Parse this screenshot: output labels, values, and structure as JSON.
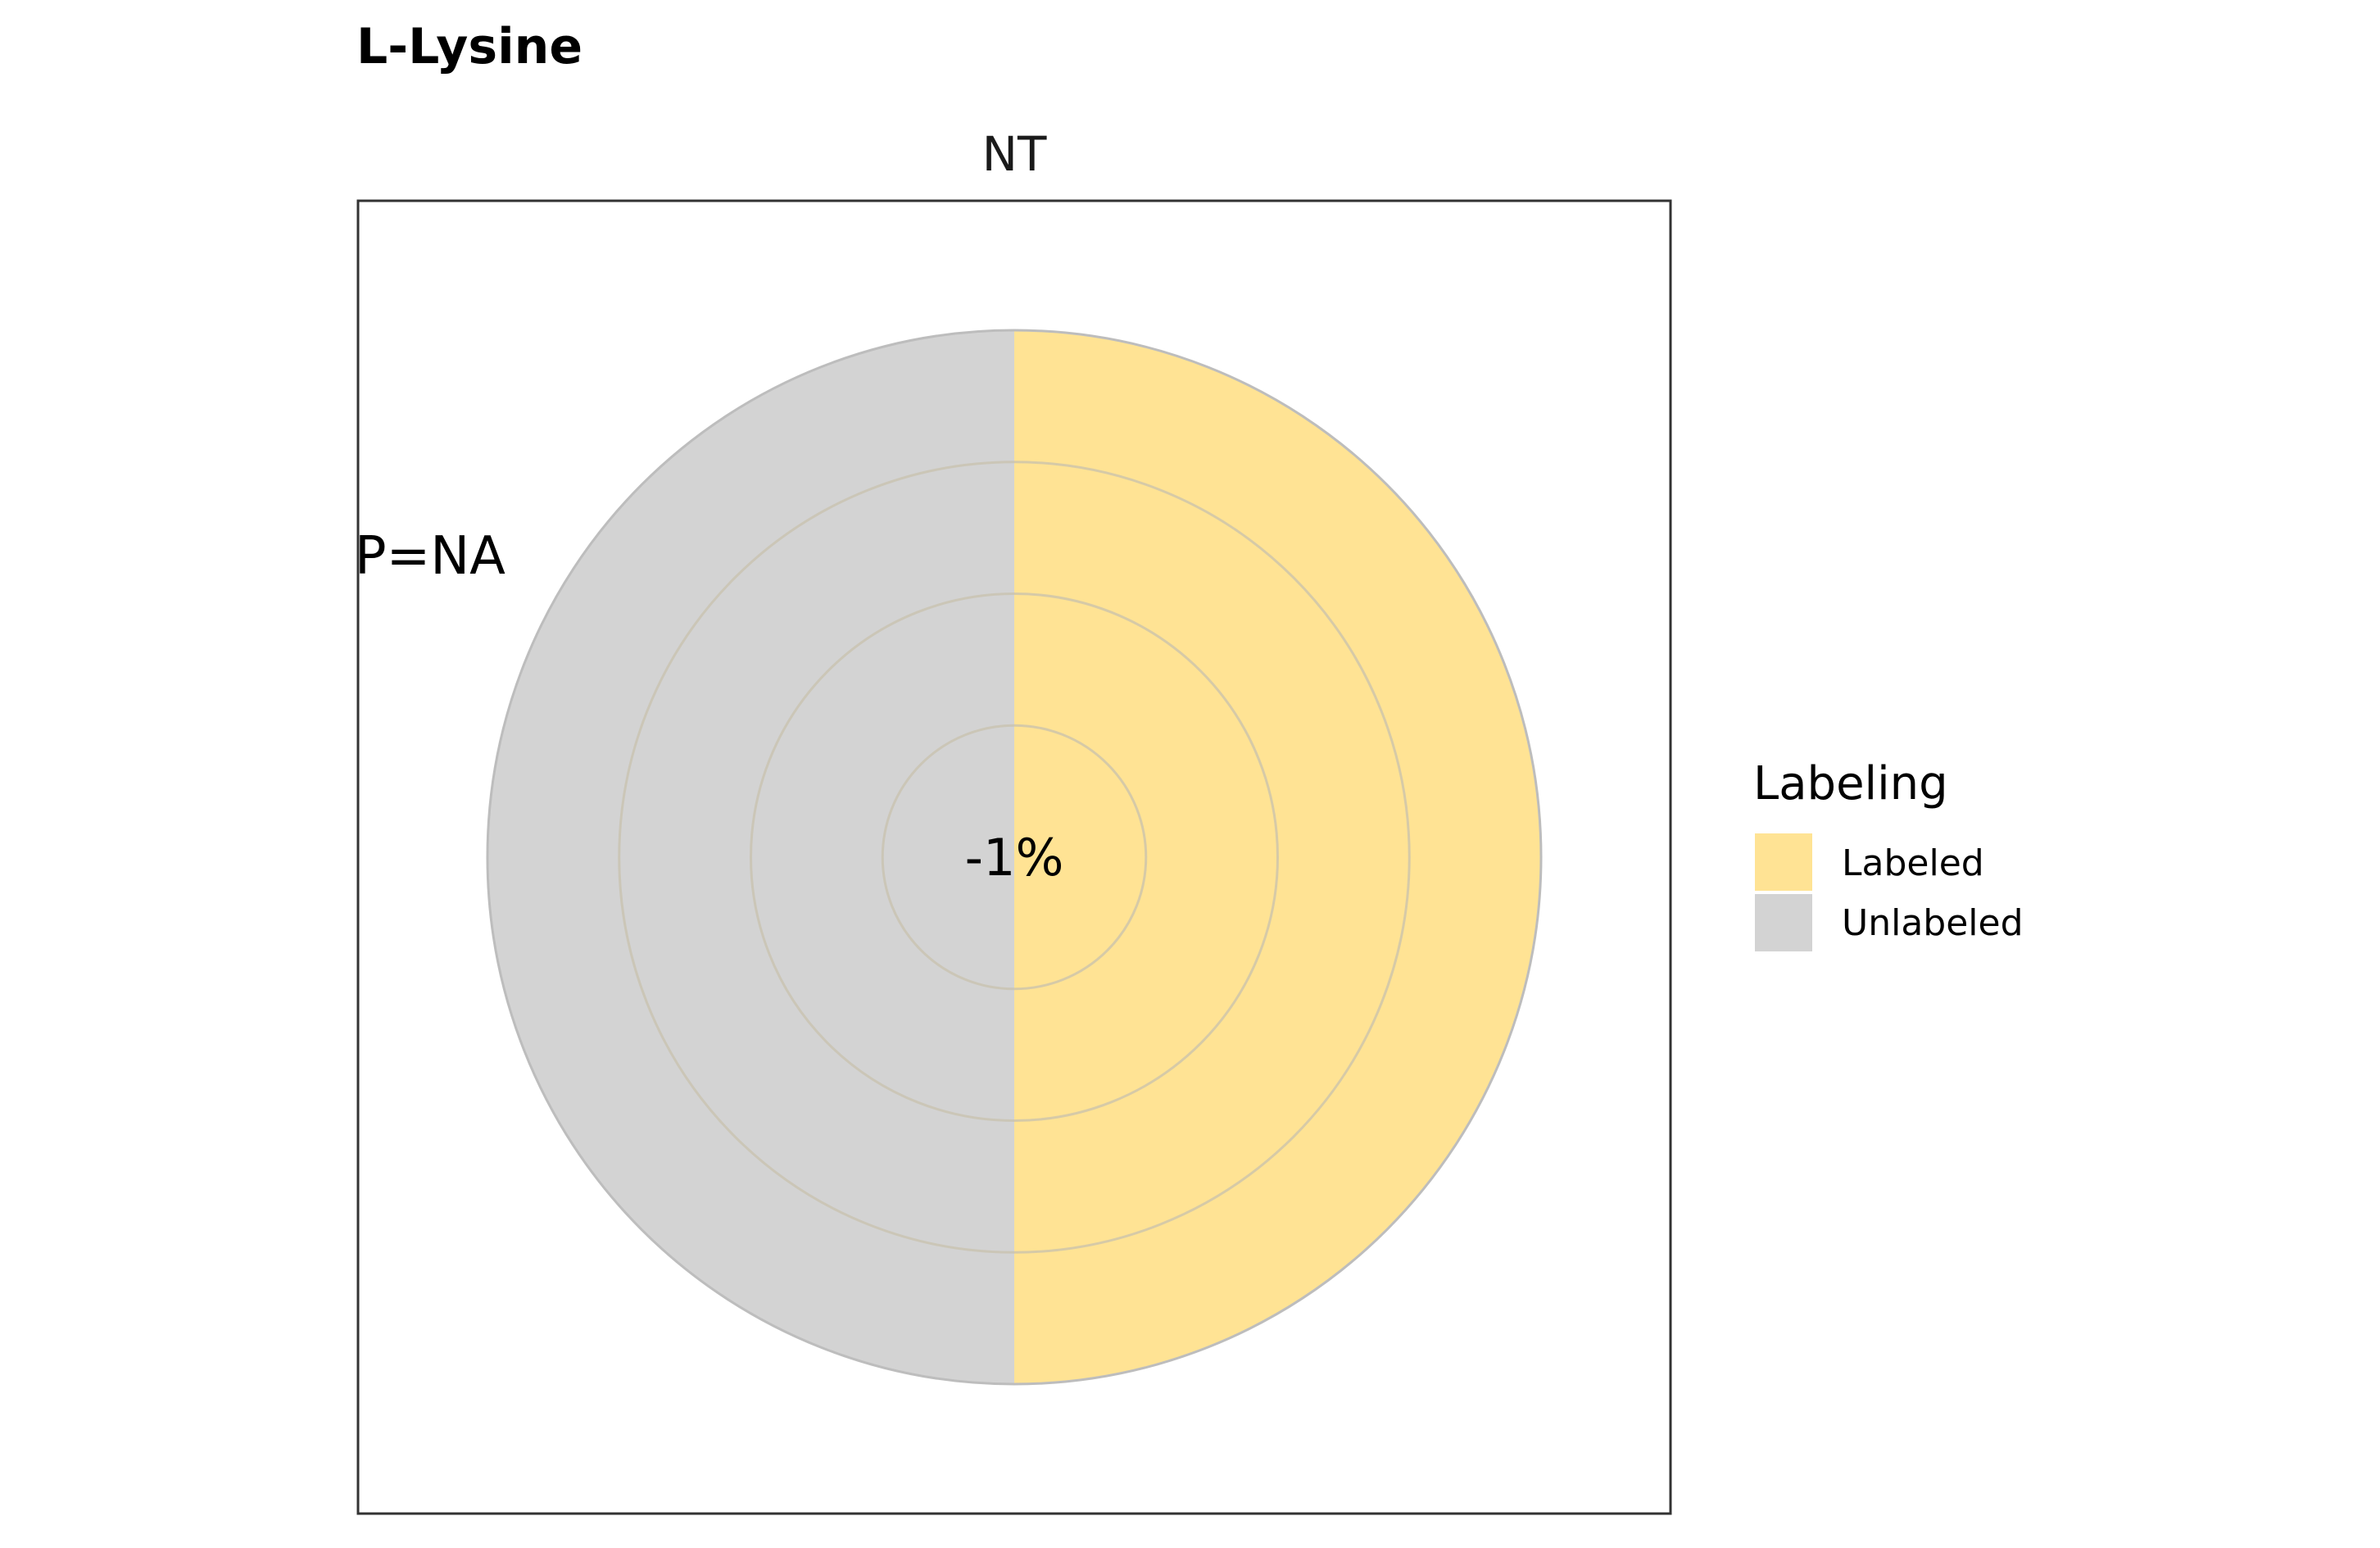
{
  "chart_data": {
    "type": "pie",
    "title": "L-Lysine",
    "facet_label": "NT",
    "annotation": "P=NA",
    "center_label": "-1%",
    "slices": [
      {
        "label": "Labeled",
        "value": 50,
        "color": "#FFE394"
      },
      {
        "label": "Unlabeled",
        "value": 50,
        "color": "#D3D3D3"
      }
    ],
    "legend": {
      "title": "Labeling",
      "position": "right",
      "items": [
        {
          "label": "Labeled",
          "color": "#FFE394"
        },
        {
          "label": "Unlabeled",
          "color": "#D3D3D3"
        }
      ]
    },
    "grid": true
  }
}
